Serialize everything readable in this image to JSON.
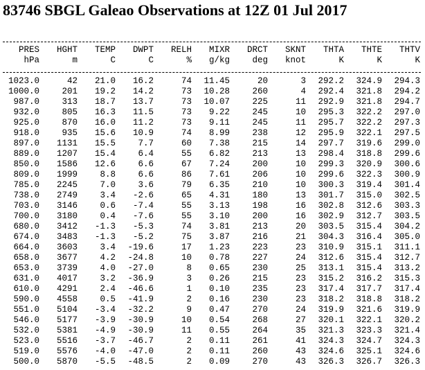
{
  "title": "83746 SBGL Galeao Observations at 12Z 01 Jul 2017",
  "table": {
    "columns": [
      {
        "name": "PRES",
        "unit": "hPa"
      },
      {
        "name": "HGHT",
        "unit": "m"
      },
      {
        "name": "TEMP",
        "unit": "C"
      },
      {
        "name": "DWPT",
        "unit": "C"
      },
      {
        "name": "RELH",
        "unit": "%"
      },
      {
        "name": "MIXR",
        "unit": "g/kg"
      },
      {
        "name": "DRCT",
        "unit": "deg"
      },
      {
        "name": "SKNT",
        "unit": "knot"
      },
      {
        "name": "THTA",
        "unit": "K"
      },
      {
        "name": "THTE",
        "unit": "K"
      },
      {
        "name": "THTV",
        "unit": "K"
      }
    ],
    "rows": [
      [
        "1023.0",
        "42",
        "21.0",
        "16.2",
        "74",
        "11.45",
        "20",
        "3",
        "292.2",
        "324.9",
        "294.3"
      ],
      [
        "1000.0",
        "201",
        "19.2",
        "14.2",
        "73",
        "10.28",
        "260",
        "4",
        "292.4",
        "321.8",
        "294.2"
      ],
      [
        "987.0",
        "313",
        "18.7",
        "13.7",
        "73",
        "10.07",
        "225",
        "11",
        "292.9",
        "321.8",
        "294.7"
      ],
      [
        "932.0",
        "805",
        "16.3",
        "11.5",
        "73",
        "9.22",
        "245",
        "10",
        "295.3",
        "322.2",
        "297.0"
      ],
      [
        "925.0",
        "870",
        "16.0",
        "11.2",
        "73",
        "9.11",
        "245",
        "11",
        "295.7",
        "322.2",
        "297.3"
      ],
      [
        "918.0",
        "935",
        "15.6",
        "10.9",
        "74",
        "8.99",
        "238",
        "12",
        "295.9",
        "322.1",
        "297.5"
      ],
      [
        "897.0",
        "1131",
        "15.5",
        "7.7",
        "60",
        "7.38",
        "215",
        "14",
        "297.7",
        "319.6",
        "299.0"
      ],
      [
        "889.0",
        "1207",
        "15.4",
        "6.4",
        "55",
        "6.82",
        "213",
        "13",
        "298.4",
        "318.8",
        "299.6"
      ],
      [
        "850.0",
        "1586",
        "12.6",
        "6.6",
        "67",
        "7.24",
        "200",
        "10",
        "299.3",
        "320.9",
        "300.6"
      ],
      [
        "809.0",
        "1999",
        "8.8",
        "6.6",
        "86",
        "7.61",
        "206",
        "10",
        "299.6",
        "322.3",
        "300.9"
      ],
      [
        "785.0",
        "2245",
        "7.0",
        "3.6",
        "79",
        "6.35",
        "210",
        "10",
        "300.3",
        "319.4",
        "301.4"
      ],
      [
        "738.0",
        "2749",
        "3.4",
        "-2.6",
        "65",
        "4.31",
        "180",
        "13",
        "301.7",
        "315.0",
        "302.5"
      ],
      [
        "703.0",
        "3146",
        "0.6",
        "-7.4",
        "55",
        "3.13",
        "198",
        "16",
        "302.8",
        "312.6",
        "303.3"
      ],
      [
        "700.0",
        "3180",
        "0.4",
        "-7.6",
        "55",
        "3.10",
        "200",
        "16",
        "302.9",
        "312.7",
        "303.5"
      ],
      [
        "680.0",
        "3412",
        "-1.3",
        "-5.3",
        "74",
        "3.81",
        "213",
        "20",
        "303.5",
        "315.4",
        "304.2"
      ],
      [
        "674.0",
        "3483",
        "-1.3",
        "-5.2",
        "75",
        "3.87",
        "216",
        "21",
        "304.3",
        "316.4",
        "305.0"
      ],
      [
        "664.0",
        "3603",
        "3.4",
        "-19.6",
        "17",
        "1.23",
        "223",
        "23",
        "310.9",
        "315.1",
        "311.1"
      ],
      [
        "658.0",
        "3677",
        "4.2",
        "-24.8",
        "10",
        "0.78",
        "227",
        "24",
        "312.6",
        "315.4",
        "312.7"
      ],
      [
        "653.0",
        "3739",
        "4.0",
        "-27.0",
        "8",
        "0.65",
        "230",
        "25",
        "313.1",
        "315.4",
        "313.2"
      ],
      [
        "631.0",
        "4017",
        "3.2",
        "-36.9",
        "3",
        "0.26",
        "215",
        "23",
        "315.2",
        "316.2",
        "315.3"
      ],
      [
        "610.0",
        "4291",
        "2.4",
        "-46.6",
        "1",
        "0.10",
        "235",
        "23",
        "317.4",
        "317.7",
        "317.4"
      ],
      [
        "590.0",
        "4558",
        "0.5",
        "-41.9",
        "2",
        "0.16",
        "230",
        "23",
        "318.2",
        "318.8",
        "318.2"
      ],
      [
        "551.0",
        "5104",
        "-3.4",
        "-32.2",
        "9",
        "0.47",
        "270",
        "24",
        "319.9",
        "321.6",
        "319.9"
      ],
      [
        "546.0",
        "5177",
        "-3.9",
        "-30.9",
        "10",
        "0.54",
        "268",
        "27",
        "320.1",
        "322.1",
        "320.2"
      ],
      [
        "532.0",
        "5381",
        "-4.9",
        "-30.9",
        "11",
        "0.55",
        "264",
        "35",
        "321.3",
        "323.3",
        "321.4"
      ],
      [
        "523.0",
        "5516",
        "-3.7",
        "-46.7",
        "2",
        "0.11",
        "261",
        "41",
        "324.3",
        "324.7",
        "324.3"
      ],
      [
        "519.0",
        "5576",
        "-4.0",
        "-47.0",
        "2",
        "0.11",
        "260",
        "43",
        "324.6",
        "325.1",
        "324.6"
      ],
      [
        "500.0",
        "5870",
        "-5.5",
        "-48.5",
        "2",
        "0.09",
        "270",
        "43",
        "326.3",
        "326.7",
        "326.3"
      ]
    ]
  }
}
